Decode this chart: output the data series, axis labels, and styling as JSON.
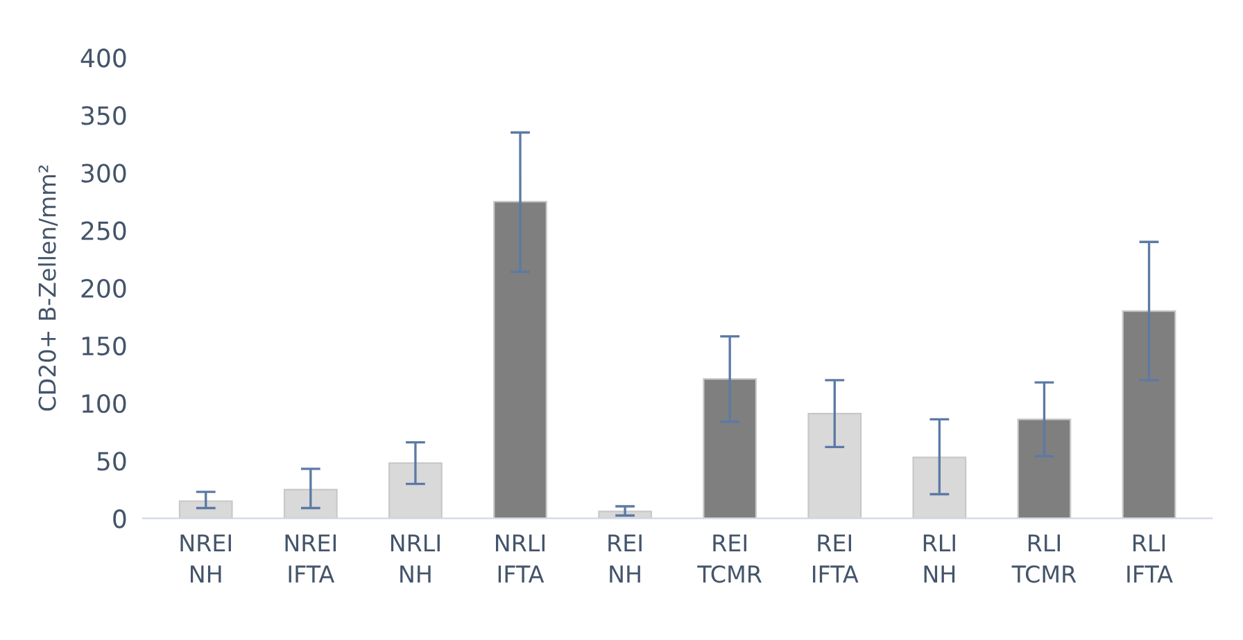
{
  "chart_data": {
    "type": "bar",
    "ylabel": "CD20+ B-Zellen/mm²",
    "categories": [
      "NREI\nNH",
      "NREI\nIFTA",
      "NRLI\nNH",
      "NRLI\nIFTA",
      "REI\nNH",
      "REI\nTCMR",
      "REI\nIFTA",
      "RLI\nNH",
      "RLI\nTCMR",
      "RLI\nIFTA"
    ],
    "values": [
      15,
      25,
      48,
      275,
      6,
      121,
      91,
      53,
      86,
      180
    ],
    "colors": [
      "#d9d9d9",
      "#d9d9d9",
      "#d9d9d9",
      "#7f7f7f",
      "#d9d9d9",
      "#7f7f7f",
      "#d9d9d9",
      "#d9d9d9",
      "#7f7f7f",
      "#7f7f7f"
    ],
    "errors": [
      [
        9,
        23
      ],
      [
        9,
        43
      ],
      [
        30,
        66
      ],
      [
        214,
        335
      ],
      [
        2.5,
        10.5
      ],
      [
        84,
        158
      ],
      [
        62,
        120
      ],
      [
        21,
        86
      ],
      [
        54,
        118
      ],
      [
        120,
        240
      ]
    ],
    "ylim": [
      0,
      400
    ],
    "yticks": [
      0,
      50,
      100,
      150,
      200,
      250,
      300,
      350,
      400
    ],
    "grid": false
  }
}
